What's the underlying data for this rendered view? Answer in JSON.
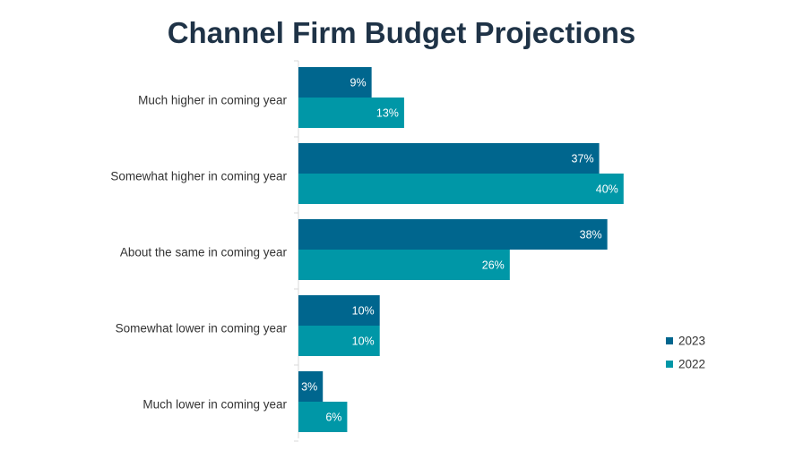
{
  "chart_data": {
    "type": "bar",
    "orientation": "horizontal",
    "title": "Channel Firm Budget Projections",
    "xlabel": "",
    "ylabel": "",
    "categories": [
      "Much higher in coming year",
      "Somewhat higher in coming year",
      "About the same in coming year",
      "Somewhat lower in coming year",
      "Much lower in coming year"
    ],
    "series": [
      {
        "name": "2023",
        "color": "#00668e",
        "values": [
          9,
          37,
          38,
          10,
          3
        ],
        "labels": [
          "9%",
          "37%",
          "38%",
          "10%",
          "3%"
        ]
      },
      {
        "name": "2022",
        "color": "#0097a7",
        "values": [
          13,
          40,
          26,
          10,
          6
        ],
        "labels": [
          "13%",
          "40%",
          "26%",
          "10%",
          "6%"
        ]
      }
    ],
    "xlim": [
      0,
      45
    ],
    "grid": false,
    "legend": "right"
  }
}
